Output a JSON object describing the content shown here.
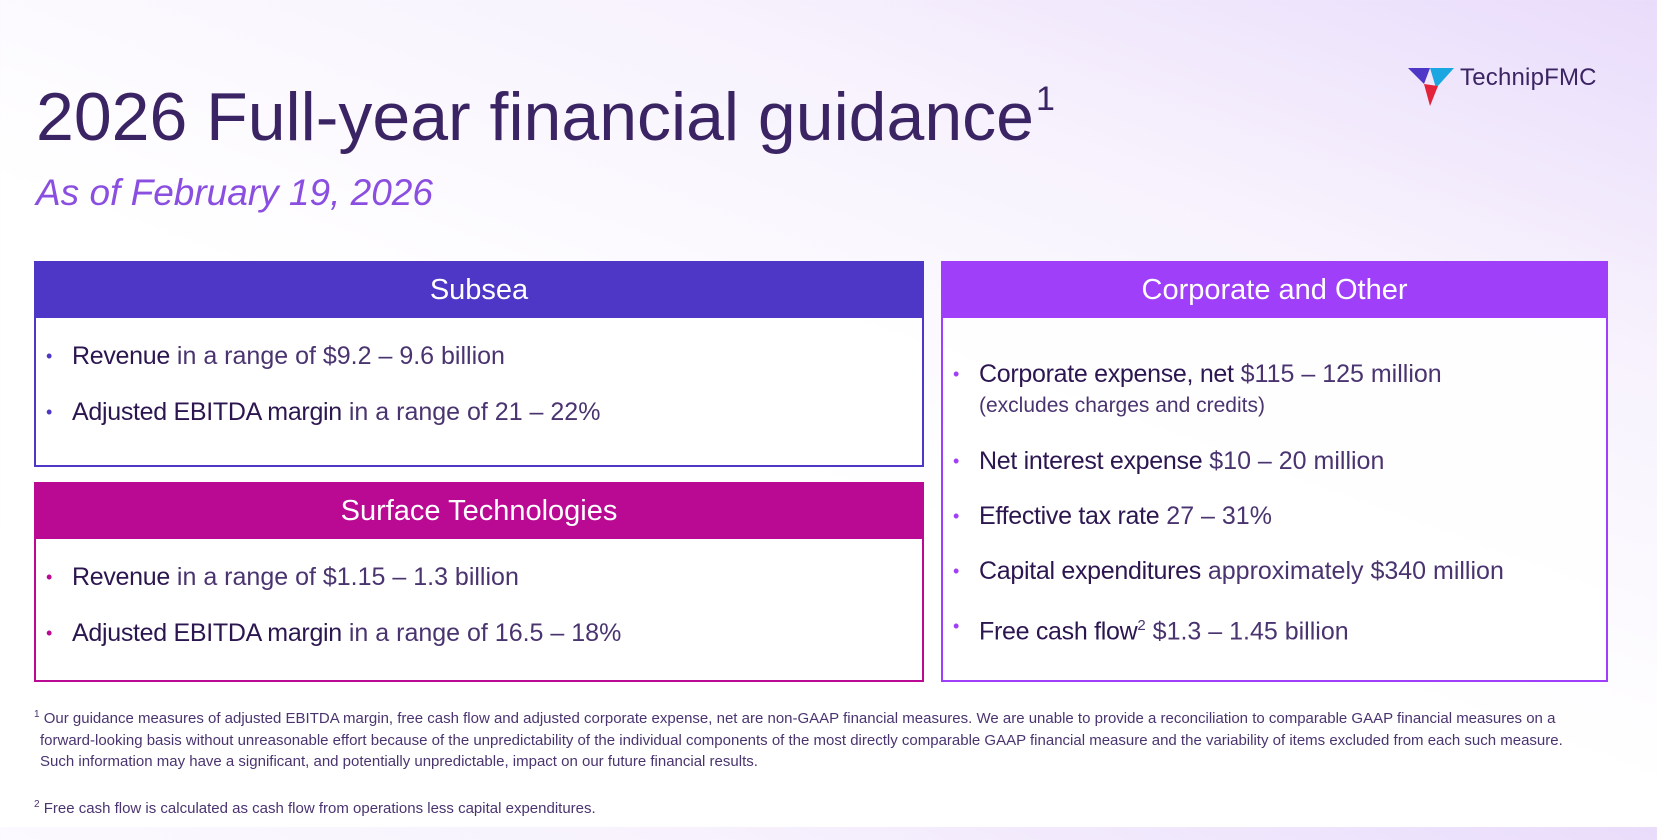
{
  "header": {
    "title": "2026 Full-year financial guidance",
    "title_sup": "1",
    "subtitle": "As of February 19, 2026",
    "logo": "TechnipFMC"
  },
  "panels": [
    {
      "title": "Subsea",
      "items": [
        {
          "label": "Revenue",
          "text": " in a range of $9.2 – 9.6 billion"
        },
        {
          "label": "Adjusted EBITDA margin",
          "text": " in a range of 21 – 22%"
        }
      ]
    },
    {
      "title": "Surface Technologies",
      "items": [
        {
          "label": "Revenue",
          "text": " in a range of $1.15 – 1.3 billion"
        },
        {
          "label": "Adjusted EBITDA margin",
          "text": " in a range of 16.5 – 18%"
        }
      ]
    },
    {
      "title": "Corporate and Other",
      "items": [
        {
          "label": "Corporate expense, net",
          "text": " $115 – 125 million",
          "note": "(excludes charges and credits)"
        },
        {
          "label": "Net interest expense",
          "text": " $10 – 20 million"
        },
        {
          "label": "Effective tax rate",
          "text": " 27 – 31%"
        },
        {
          "label": "Capital expenditures",
          "text": " approximately $340 million"
        },
        {
          "label": "Free cash flow",
          "sup": "2",
          "text": " $1.3 – 1.45 billion"
        }
      ]
    }
  ],
  "footnotes": [
    {
      "marker": "1",
      "text": " Our guidance measures of adjusted EBITDA margin, free cash flow and adjusted corporate expense, net are non-GAAP financial measures. We are unable to provide a reconciliation to comparable GAAP financial measures on a forward-looking basis without unreasonable effort because of the unpredictability of the individual components of the most directly comparable GAAP financial measure and the variability of items excluded from each such measure. Such information may have a significant, and potentially unpredictable, impact on our future financial results."
    },
    {
      "marker": "2",
      "text": " Free cash flow is calculated as cash flow from operations less capital expenditures."
    }
  ]
}
